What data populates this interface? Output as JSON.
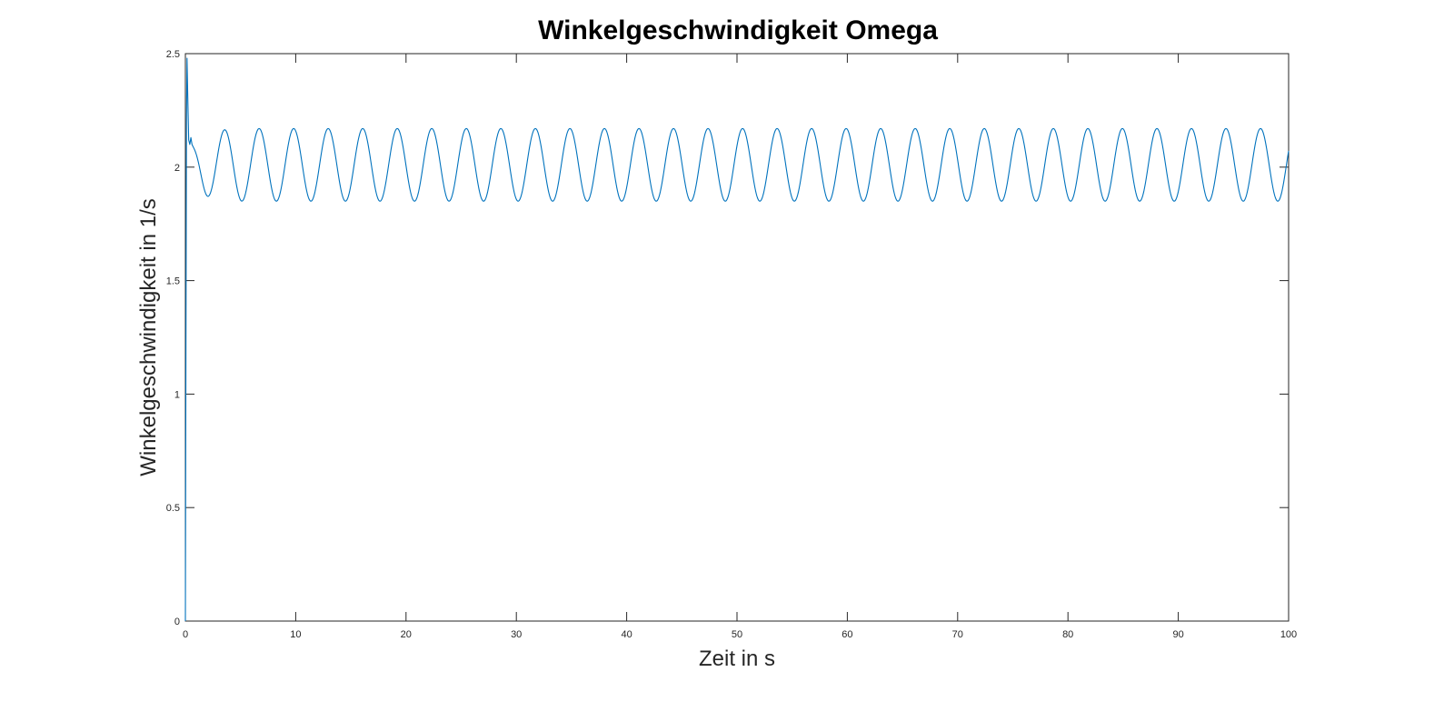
{
  "chart_data": {
    "type": "line",
    "title": "Winkelgeschwindigkeit Omega",
    "xlabel": "Zeit in s",
    "ylabel": "Winkelgeschwindigkeit in 1/s",
    "xlim": [
      0,
      100
    ],
    "ylim": [
      0,
      2.5
    ],
    "x_ticks": [
      0,
      10,
      20,
      30,
      40,
      50,
      60,
      70,
      80,
      90,
      100
    ],
    "x_tick_labels": [
      "0",
      "10",
      "20",
      "30",
      "40",
      "50",
      "60",
      "70",
      "80",
      "90",
      "100"
    ],
    "y_ticks": [
      0,
      0.5,
      1,
      1.5,
      2,
      2.5
    ],
    "y_tick_labels": [
      "0",
      "0.5",
      "1",
      "1.5",
      "2",
      "2.5"
    ],
    "grid": false,
    "legend": "none",
    "color": "#0072BD",
    "axis_color": "#262626",
    "series": [
      {
        "description_values": "transient start then sustained oscillation",
        "x": [
          0,
          0.05,
          0.1,
          0.15,
          0.2,
          0.3,
          0.4,
          0.5,
          0.6
        ],
        "y": [
          0,
          1.2,
          2.2,
          2.48,
          2.35,
          2.12,
          2.1,
          2.13,
          2.1
        ],
        "oscillation": {
          "start": 0.6,
          "end": 100,
          "period": 3.13,
          "mean": 2.01,
          "amplitude": 0.16,
          "max": 2.17,
          "min": 1.85
        }
      }
    ]
  }
}
